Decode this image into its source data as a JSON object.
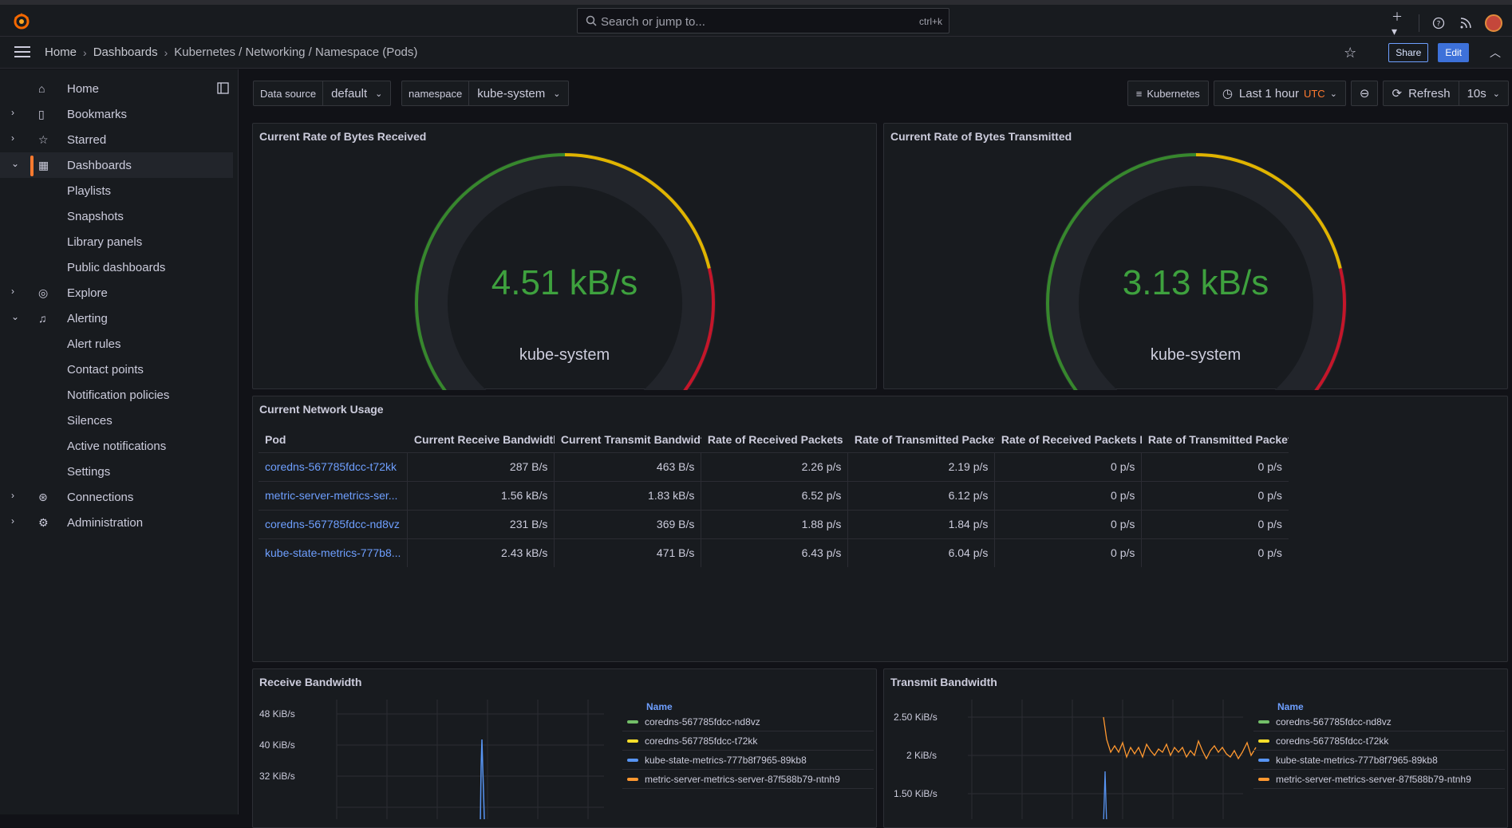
{
  "topbar": {
    "search_placeholder": "Search or jump to...",
    "search_shortcut": "ctrl+k",
    "icons": [
      "plus-icon",
      "help-icon",
      "news-icon",
      "avatar"
    ]
  },
  "breadcrumb": {
    "items": [
      "Home",
      "Dashboards",
      "Kubernetes / Networking / Namespace (Pods)"
    ],
    "share_label": "Share",
    "edit_label": "Edit"
  },
  "sidebar": {
    "items": [
      {
        "label": "Home",
        "icon": "home-icon",
        "expandable": false
      },
      {
        "label": "Bookmarks",
        "icon": "bookmark-icon",
        "expandable": true
      },
      {
        "label": "Starred",
        "icon": "star-icon",
        "expandable": true
      },
      {
        "label": "Dashboards",
        "icon": "apps-icon",
        "expandable": true,
        "active": true
      },
      {
        "label": "Playlists",
        "sub": true
      },
      {
        "label": "Snapshots",
        "sub": true
      },
      {
        "label": "Library panels",
        "sub": true
      },
      {
        "label": "Public dashboards",
        "sub": true
      },
      {
        "label": "Explore",
        "icon": "compass-icon",
        "expandable": true
      },
      {
        "label": "Alerting",
        "icon": "bell-icon",
        "expandable": true
      },
      {
        "label": "Alert rules",
        "sub": true
      },
      {
        "label": "Contact points",
        "sub": true
      },
      {
        "label": "Notification policies",
        "sub": true
      },
      {
        "label": "Silences",
        "sub": true
      },
      {
        "label": "Active notifications",
        "sub": true
      },
      {
        "label": "Settings",
        "sub": true
      },
      {
        "label": "Connections",
        "icon": "plug-icon",
        "expandable": true
      },
      {
        "label": "Administration",
        "icon": "cog-icon",
        "expandable": true
      }
    ]
  },
  "variables": {
    "datasource_label": "Data source",
    "datasource_value": "default",
    "namespace_label": "namespace",
    "namespace_value": "kube-system"
  },
  "toolbar": {
    "kubernetes_label": "Kubernetes",
    "time_range": "Last 1 hour",
    "timezone": "UTC",
    "refresh_label": "Refresh",
    "refresh_interval": "10s"
  },
  "gauges": [
    {
      "title": "Current Rate of Bytes Received",
      "value": "4.51 kB/s",
      "label": "kube-system",
      "fraction": 0.04
    },
    {
      "title": "Current Rate of Bytes Transmitted",
      "value": "3.13 kB/s",
      "label": "kube-system",
      "fraction": 0.03
    }
  ],
  "table_panel": {
    "title": "Current Network Usage",
    "columns": [
      "Pod",
      "Current Receive Bandwidth",
      "Current Transmit Bandwidth",
      "Rate of Received Packets",
      "Rate of Transmitted Packets",
      "Rate of Received Packets Drop",
      "Rate of Transmitted Packets D"
    ],
    "rows": [
      [
        "coredns-567785fdcc-t72kk",
        "287 B/s",
        "463 B/s",
        "2.26 p/s",
        "2.19 p/s",
        "0 p/s",
        "0 p/s"
      ],
      [
        "metric-server-metrics-ser...",
        "1.56 kB/s",
        "1.83 kB/s",
        "6.52 p/s",
        "6.12 p/s",
        "0 p/s",
        "0 p/s"
      ],
      [
        "coredns-567785fdcc-nd8vz",
        "231 B/s",
        "369 B/s",
        "1.88 p/s",
        "1.84 p/s",
        "0 p/s",
        "0 p/s"
      ],
      [
        "kube-state-metrics-777b8...",
        "2.43 kB/s",
        "471 B/s",
        "6.43 p/s",
        "6.04 p/s",
        "0 p/s",
        "0 p/s"
      ]
    ]
  },
  "timeseries": [
    {
      "title": "Receive Bandwidth",
      "y_ticks": [
        "48 KiB/s",
        "40 KiB/s",
        "32 KiB/s"
      ],
      "legend_header": "Name",
      "legend": [
        {
          "name": "coredns-567785fdcc-nd8vz",
          "color": "#73bf69"
        },
        {
          "name": "coredns-567785fdcc-t72kk",
          "color": "#fade2a"
        },
        {
          "name": "kube-state-metrics-777b8f7965-89kb8",
          "color": "#5794f2"
        },
        {
          "name": "metric-server-metrics-server-87f588b79-ntnh9",
          "color": "#ff9830"
        }
      ]
    },
    {
      "title": "Transmit Bandwidth",
      "y_ticks": [
        "2.50 KiB/s",
        "2 KiB/s",
        "1.50 KiB/s"
      ],
      "legend_header": "Name",
      "legend": [
        {
          "name": "coredns-567785fdcc-nd8vz",
          "color": "#73bf69"
        },
        {
          "name": "coredns-567785fdcc-t72kk",
          "color": "#fade2a"
        },
        {
          "name": "kube-state-metrics-777b8f7965-89kb8",
          "color": "#5794f2"
        },
        {
          "name": "metric-server-metrics-server-87f588b79-ntnh9",
          "color": "#ff9830"
        }
      ]
    }
  ]
}
